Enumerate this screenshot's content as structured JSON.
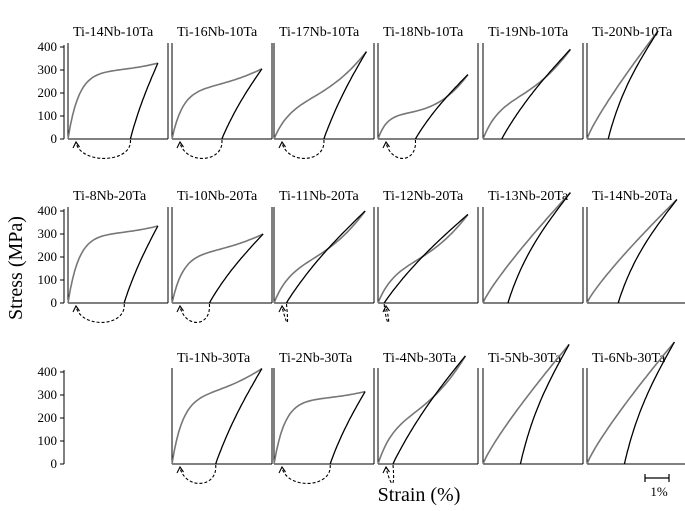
{
  "figure": {
    "ylabel": "Stress (MPa)",
    "xlabel": "Strain (%)",
    "scale_bar_label": "1%",
    "y_ticks": [
      "0",
      "100",
      "200",
      "300",
      "400"
    ]
  },
  "chart_data": {
    "type": "line",
    "grid": false,
    "xlabel": "Strain (%)",
    "ylabel": "Stress (MPa)",
    "ylim": [
      0,
      400
    ],
    "x_scale_bar": 1,
    "panels": [
      {
        "title": "Ti-14Nb-10Ta",
        "row": 0,
        "col": 0,
        "x_max": 0.72,
        "y_max": 330,
        "residual": 0.5,
        "style": "plateau",
        "arrow": true
      },
      {
        "title": "Ti-16Nb-10Ta",
        "row": 0,
        "col": 1,
        "x_max": 0.72,
        "y_max": 305,
        "residual": 0.4,
        "style": "plateau-rise",
        "arrow": true
      },
      {
        "title": "Ti-17Nb-10Ta",
        "row": 0,
        "col": 2,
        "x_max": 0.74,
        "y_max": 380,
        "residual": 0.4,
        "style": "s-curve",
        "arrow": true
      },
      {
        "title": "Ti-18Nb-10Ta",
        "row": 0,
        "col": 3,
        "x_max": 0.72,
        "y_max": 280,
        "residual": 0.3,
        "style": "low-plateau",
        "arrow": true
      },
      {
        "title": "Ti-19Nb-10Ta",
        "row": 0,
        "col": 4,
        "x_max": 0.7,
        "y_max": 390,
        "residual": 0.15,
        "style": "s-curve",
        "arrow": false
      },
      {
        "title": "Ti-20Nb-10Ta",
        "row": 0,
        "col": 5,
        "x_max": 0.57,
        "y_max": 470,
        "residual": 0.17,
        "style": "linear",
        "arrow": false
      },
      {
        "title": "Ti-8Nb-20Ta",
        "row": 1,
        "col": 0,
        "x_max": 0.72,
        "y_max": 335,
        "residual": 0.45,
        "style": "plateau",
        "arrow": true
      },
      {
        "title": "Ti-10Nb-20Ta",
        "row": 1,
        "col": 1,
        "x_max": 0.73,
        "y_max": 300,
        "residual": 0.3,
        "style": "plateau-rise",
        "arrow": true
      },
      {
        "title": "Ti-11Nb-20Ta",
        "row": 1,
        "col": 2,
        "x_max": 0.73,
        "y_max": 400,
        "residual": 0.1,
        "style": "s-curve",
        "arrow": true
      },
      {
        "title": "Ti-12Nb-20Ta",
        "row": 1,
        "col": 3,
        "x_max": 0.72,
        "y_max": 385,
        "residual": 0.05,
        "style": "s-curve",
        "arrow": true
      },
      {
        "title": "Ti-13Nb-20Ta",
        "row": 1,
        "col": 4,
        "x_max": 0.7,
        "y_max": 480,
        "residual": 0.2,
        "style": "linear",
        "arrow": false
      },
      {
        "title": "Ti-14Nb-20Ta",
        "row": 1,
        "col": 5,
        "x_max": 0.72,
        "y_max": 450,
        "residual": 0.25,
        "style": "linear",
        "arrow": false
      },
      {
        "title": "Ti-1Nb-30Ta",
        "row": 2,
        "col": 1,
        "x_max": 0.72,
        "y_max": 415,
        "residual": 0.35,
        "style": "plateau-rise",
        "arrow": true
      },
      {
        "title": "Ti-2Nb-30Ta",
        "row": 2,
        "col": 2,
        "x_max": 0.73,
        "y_max": 315,
        "residual": 0.45,
        "style": "plateau",
        "arrow": true
      },
      {
        "title": "Ti-4Nb-30Ta",
        "row": 2,
        "col": 3,
        "x_max": 0.7,
        "y_max": 470,
        "residual": 0.12,
        "style": "s-curve",
        "arrow": true
      },
      {
        "title": "Ti-5Nb-30Ta",
        "row": 2,
        "col": 4,
        "x_max": 0.69,
        "y_max": 520,
        "residual": 0.3,
        "style": "linear",
        "arrow": false
      },
      {
        "title": "Ti-6Nb-30Ta",
        "row": 2,
        "col": 5,
        "x_max": 0.7,
        "y_max": 530,
        "residual": 0.3,
        "style": "linear",
        "arrow": false
      }
    ]
  }
}
